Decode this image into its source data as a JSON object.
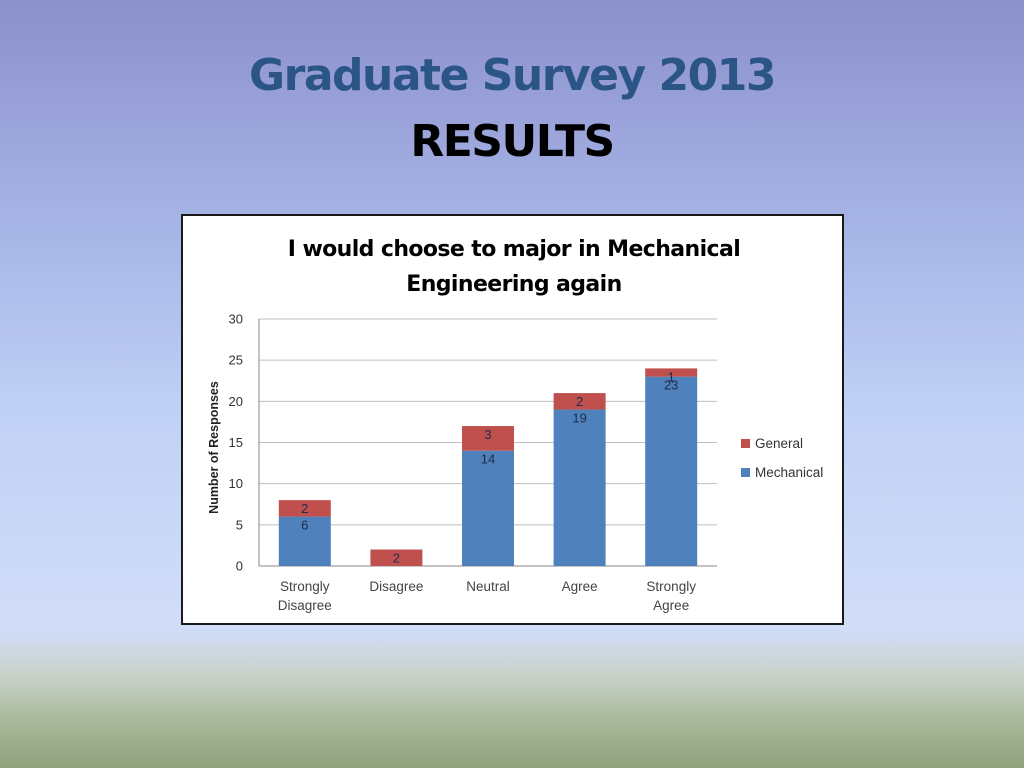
{
  "slide": {
    "title": "Graduate Survey 2013",
    "subtitle": "RESULTS"
  },
  "chart_data": {
    "type": "bar",
    "stacked": true,
    "title_lines": [
      "I would choose to major in Mechanical",
      "Engineering again"
    ],
    "categories": [
      [
        "Strongly",
        "Disagree"
      ],
      [
        "Disagree"
      ],
      [
        "Neutral"
      ],
      [
        "Agree"
      ],
      [
        "Strongly",
        "Agree"
      ]
    ],
    "series": [
      {
        "name": "Mechanical",
        "color": "#4f81bd",
        "values": [
          6,
          0,
          14,
          19,
          23
        ]
      },
      {
        "name": "General",
        "color": "#c0504d",
        "values": [
          2,
          2,
          3,
          2,
          1
        ]
      }
    ],
    "xlabel": "",
    "ylabel": "Number of Responses",
    "ylim": [
      0,
      30
    ],
    "yticks": [
      0,
      5,
      10,
      15,
      20,
      25,
      30
    ],
    "grid": true,
    "legend_position": "right",
    "legend_order": [
      "General",
      "Mechanical"
    ]
  }
}
